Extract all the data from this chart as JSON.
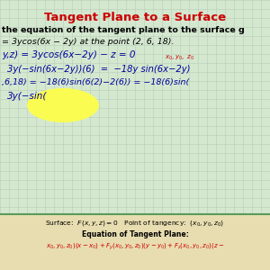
{
  "title": "Tangent Plane to a Surface",
  "title_color": "#cc0000",
  "bg_color": "#d4e8d0",
  "grid_color": "#b8ccb8",
  "bottom_bg_color": "#e8ddb0",
  "bottom_line_color": "#5a9a5a",
  "highlight_color": "#ffff44",
  "line1": "the equation of the tangent plane to the surface g",
  "line2": "= 3ycos(6x − 2y) at the point (2, 6, 18).",
  "line3": "y,z) = 3ycos(6x−2y) − z = 0",
  "line3b": "x₀, y₀,  z₀",
  "line4": "3y(−sin(6x−2y))(6)  =  −18y sin(6x−2y)",
  "line5": ",6,18) = −18(6)sin(6(2)−2(6)) = −18(6)sin(",
  "line6": "3y(−sin(",
  "bot1": "Surface:  F(x, y, z) = 0   Point of tangency:  (x₀, y₀, z₀)",
  "bot2": "Equation of Tangent Plane:",
  "bot3": "x₀, y₀, z₀)(x − x₀) + Fy(x₀, y₀, z₀)(y − y₀) + Fz(x₀, y₀, z₀)(z −"
}
